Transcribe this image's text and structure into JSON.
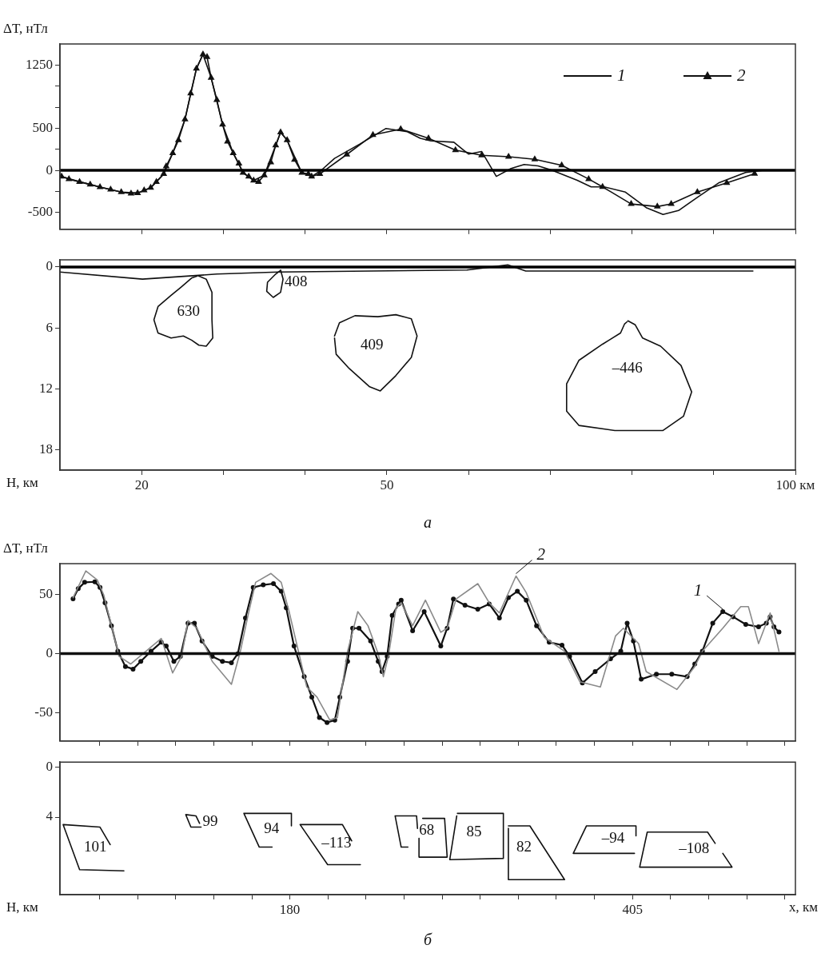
{
  "chart_data": [
    {
      "type": "line",
      "ylabel": "ΔT, нТл",
      "xlim": [
        10,
        100
      ],
      "xticks": [
        {
          "value": 20,
          "label": null
        },
        {
          "value": 30,
          "label": null
        },
        {
          "value": 40,
          "label": null
        },
        {
          "value": 50,
          "label": null
        },
        {
          "value": 60,
          "label": null
        },
        {
          "value": 70,
          "label": null
        },
        {
          "value": 80,
          "label": null
        },
        {
          "value": 90,
          "label": null
        },
        {
          "value": 100,
          "label": null
        }
      ],
      "ylim": [
        -700,
        1500
      ],
      "yticks": [
        1250,
        {
          "value": 1000,
          "label": null
        },
        {
          "value": 750,
          "label": null
        },
        500,
        {
          "value": 250,
          "label": null
        },
        0,
        {
          "value": -250,
          "label": null
        },
        -500
      ],
      "tick_labels": "y",
      "legend": "top right",
      "grid": false,
      "ref_lines": [
        {
          "axis": "y",
          "value": 0,
          "color": "#000000"
        }
      ],
      "series": [
        {
          "name": "1",
          "color": "#111111",
          "marker": "none",
          "x": [
            10.2,
            12.4,
            14.9,
            17.5,
            19.5,
            21.1,
            22.7,
            23.8,
            25.3,
            26.7,
            27.5,
            28.5,
            29.9,
            31.2,
            32.4,
            33.7,
            35.0,
            36.4,
            37.0,
            37.8,
            39.6,
            40.8,
            42.0,
            43.6,
            46.7,
            49.9,
            52.5,
            54.1,
            55.4,
            58.2,
            59.4,
            60.0,
            61.6,
            63.4,
            65.2,
            66.8,
            68.5,
            70.1,
            73.3,
            75.0,
            76.6,
            79.2,
            81.8,
            83.8,
            85.7,
            88.0,
            90.6,
            93.9,
            96.1
          ],
          "values": [
            -74,
            -136,
            -198,
            -259,
            -269,
            -207,
            -43,
            204,
            605,
            1207,
            1377,
            1099,
            543,
            204,
            -28,
            -120,
            -59,
            296,
            451,
            358,
            -28,
            -74,
            3,
            142,
            312,
            497,
            458,
            380,
            349,
            334,
            240,
            193,
            224,
            -72,
            22,
            69,
            53,
            6,
            -118,
            -196,
            -196,
            -259,
            -446,
            -524,
            -477,
            -321,
            -150,
            -25,
            0
          ]
        },
        {
          "name": "2",
          "color": "#111111",
          "marker": "triangle",
          "x": [
            10.2,
            11.1,
            12.4,
            13.7,
            14.9,
            16.2,
            17.5,
            18.7,
            19.5,
            20.3,
            21.1,
            21.8,
            22.7,
            23.0,
            23.8,
            24.5,
            25.3,
            26.0,
            26.7,
            27.5,
            28.0,
            28.5,
            29.2,
            29.9,
            30.5,
            31.2,
            31.9,
            32.4,
            33.1,
            33.7,
            34.3,
            35.0,
            35.8,
            36.4,
            37.0,
            37.8,
            38.7,
            39.6,
            40.4,
            40.8,
            41.8,
            45.1,
            48.3,
            51.7,
            55.1,
            58.4,
            61.6,
            64.9,
            68.1,
            71.4,
            74.7,
            76.4,
            79.9,
            83.1,
            84.8,
            88.0,
            91.6,
            95.0
          ],
          "values": [
            -74,
            -105,
            -136,
            -167,
            -198,
            -228,
            -259,
            -275,
            -269,
            -238,
            -207,
            -136,
            -43,
            49,
            204,
            358,
            605,
            914,
            1207,
            1377,
            1346,
            1099,
            836,
            543,
            343,
            204,
            80,
            -28,
            -74,
            -120,
            -136,
            -59,
            96,
            296,
            451,
            358,
            127,
            -28,
            -43,
            -74,
            -43,
            188,
            420,
            490,
            380,
            240,
            178,
            162,
            131,
            59,
            -103,
            -196,
            -399,
            -430,
            -399,
            -259,
            -150,
            -41
          ]
        }
      ]
    },
    {
      "type": "line",
      "ylabel": "Н, км",
      "xlim": [
        10,
        100
      ],
      "xticks": [
        20,
        {
          "value": 30,
          "label": null
        },
        {
          "value": 40,
          "label": null
        },
        50,
        {
          "value": 60,
          "label": null
        },
        {
          "value": 70,
          "label": null
        },
        {
          "value": 80,
          "label": null
        },
        {
          "value": 90,
          "label": null
        },
        {
          "value": 100,
          "label": "100 км"
        }
      ],
      "ylim": [
        20,
        -0.7
      ],
      "yticks": [
        0,
        6,
        12,
        18
      ],
      "grid": false,
      "ref_lines": [
        {
          "axis": "y",
          "value": 0,
          "color": "#000000"
        }
      ],
      "annotations": [
        "а"
      ],
      "series": [
        {
          "color": "#111111",
          "x": [
            10,
            20.1,
            29.2,
            36.7,
            59.8,
            64.8,
            67.0,
            94.8
          ],
          "values": [
            0.5,
            1.2,
            0.7,
            0.5,
            0.3,
            -0.2,
            0.4,
            0.4
          ]
        },
        {
          "name": "630",
          "color": "#111111",
          "x": [
            27.0,
            27.9,
            28.6,
            28.6,
            28.7,
            27.9,
            27.0,
            26.1,
            25.1,
            23.6,
            22.0,
            21.5,
            22.0,
            23.6,
            24.8,
            26.1,
            26.8
          ],
          "values": [
            0.9,
            1.2,
            2.5,
            5.2,
            7.0,
            7.8,
            7.7,
            7.2,
            6.8,
            7.0,
            6.5,
            5.2,
            3.9,
            2.8,
            2.0,
            1.1,
            0.9
          ]
        },
        {
          "name": "408",
          "color": "#111111",
          "x": [
            37.0,
            37.3,
            37.0,
            36.1,
            35.3,
            35.4,
            36.4,
            36.9
          ],
          "values": [
            0.3,
            1.2,
            2.5,
            3.0,
            2.4,
            1.5,
            0.7,
            0.4
          ]
        },
        {
          "name": "409",
          "color": "#111111",
          "x": [
            43.6,
            44.2,
            46.1,
            48.9,
            51.1,
            53.0,
            53.7,
            53.0,
            51.1,
            49.2,
            47.9,
            45.4,
            43.8,
            43.6
          ],
          "values": [
            6.8,
            5.5,
            4.8,
            4.9,
            4.7,
            5.1,
            6.8,
            8.9,
            10.7,
            12.2,
            11.8,
            10.0,
            8.6,
            7.0
          ]
        },
        {
          "name": "–446",
          "color": "#111111",
          "x": [
            79.5,
            80.4,
            81.3,
            83.5,
            86.0,
            87.3,
            86.3,
            83.8,
            77.9,
            73.5,
            72.0,
            72.0,
            73.5,
            76.4,
            78.6,
            79.1,
            79.4
          ],
          "values": [
            5.3,
            5.7,
            7.0,
            7.8,
            9.7,
            12.3,
            14.7,
            16.1,
            16.1,
            15.6,
            14.2,
            11.5,
            9.2,
            7.6,
            6.5,
            5.6,
            5.4
          ]
        }
      ]
    },
    {
      "type": "line",
      "ylabel": "ΔT, нТл",
      "xlim": [
        29,
        512
      ],
      "xticks": [
        {
          "value": 55,
          "label": null
        },
        {
          "value": 80,
          "label": null
        },
        {
          "value": 105,
          "label": null
        },
        {
          "value": 130,
          "label": null
        },
        {
          "value": 155,
          "label": null
        },
        {
          "value": 180,
          "label": null
        },
        {
          "value": 205,
          "label": null
        },
        {
          "value": 230,
          "label": null
        },
        {
          "value": 255,
          "label": null
        },
        {
          "value": 280,
          "label": null
        },
        {
          "value": 305,
          "label": null
        },
        {
          "value": 330,
          "label": null
        },
        {
          "value": 355,
          "label": null
        },
        {
          "value": 380,
          "label": null
        },
        {
          "value": 405,
          "label": null
        },
        {
          "value": 430,
          "label": null
        },
        {
          "value": 455,
          "label": null
        },
        {
          "value": 480,
          "label": null
        },
        {
          "value": 505,
          "label": null
        }
      ],
      "ylim": [
        -74,
        76
      ],
      "yticks": [
        50,
        0,
        -50
      ],
      "tick_labels": "y",
      "grid": false,
      "ref_lines": [
        {
          "axis": "y",
          "value": 0,
          "color": "#111111"
        }
      ],
      "annotations": [
        {
          "text": "2",
          "x": 328.5,
          "y": 65.5
        },
        {
          "text": "1",
          "x": 464.3,
          "y": 35.4
        }
      ],
      "series": [
        {
          "color": "#8a8a8a",
          "marker": "none",
          "x": [
            37.6,
            46.0,
            53.5,
            57.8,
            67.8,
            75.4,
            95.5,
            103.0,
            108.9,
            113.1,
            118.9,
            129.0,
            141.6,
            147.5,
            152.5,
            157.5,
            167.6,
            174.3,
            179.3,
            191.1,
            197.8,
            206.2,
            211.2,
            217.9,
            224.6,
            231.3,
            238.0,
            241.4,
            244.7,
            249.7,
            253.1,
            260.6,
            269.0,
            279.1,
            283.3,
            289.2,
            303.4,
            310.9,
            317.6,
            328.5,
            335.2,
            347.0,
            360.4,
            370.4,
            383.9,
            393.9,
            399.0,
            409.0,
            414.0,
            434.2,
            445.9,
            450.9,
            464.3,
            476.1,
            481.1,
            487.8,
            495.4,
            501.2
          ],
          "values": [
            47.2,
            69.9,
            62.3,
            49.4,
            -2.4,
            -8.9,
            12.7,
            -16.4,
            -2.4,
            27.8,
            21.4,
            -6.7,
            -26.1,
            1.9,
            32.2,
            60.2,
            67.7,
            60.2,
            36.4,
            -28.3,
            -36.9,
            -56.3,
            -54.2,
            1.9,
            35.4,
            23.5,
            -0.2,
            -19.6,
            -2.4,
            38.6,
            42.9,
            23.5,
            45.1,
            17.9,
            21.4,
            46.1,
            59.1,
            42.9,
            34.3,
            65.5,
            51.6,
            13.8,
            1.9,
            -23.9,
            -28.3,
            14.9,
            21.4,
            8.4,
            -15.3,
            -30.4,
            -11.0,
            1.9,
            21.4,
            39.7,
            39.7,
            8.4,
            34.3,
            1.9
          ]
        },
        {
          "color": "#111111",
          "marker": "circle",
          "x": [
            37.6,
            41.0,
            45.2,
            51.9,
            55.3,
            58.6,
            62.8,
            67.0,
            72.0,
            77.0,
            82.1,
            88.8,
            95.5,
            98.8,
            103.8,
            108.1,
            113.1,
            117.3,
            122.3,
            129.0,
            135.7,
            141.6,
            145.8,
            150.8,
            155.9,
            162.5,
            169.2,
            174.3,
            177.6,
            182.7,
            189.4,
            194.4,
            199.4,
            204.4,
            209.5,
            212.8,
            217.9,
            221.2,
            225.4,
            233.0,
            238.0,
            240.5,
            243.9,
            247.2,
            251.4,
            253.1,
            260.6,
            268.2,
            279.1,
            283.3,
            287.4,
            295.0,
            303.4,
            310.9,
            317.6,
            323.5,
            329.4,
            335.2,
            342.0,
            350.3,
            358.7,
            363.7,
            372.1,
            380.5,
            390.6,
            397.3,
            401.5,
            405.6,
            410.7,
            420.7,
            430.8,
            440.9,
            445.9,
            450.9,
            457.7,
            464.3,
            471.0,
            479.4,
            487.8,
            492.9,
            495.4,
            497.9,
            501.2
          ],
          "values": [
            46.2,
            54.8,
            60.2,
            60.6,
            55.9,
            42.9,
            23.5,
            1.9,
            -11.0,
            -13.2,
            -6.7,
            1.9,
            9.5,
            6.3,
            -6.7,
            -2.4,
            25.7,
            25.7,
            10.6,
            -2.4,
            -6.7,
            -7.8,
            -0.2,
            30.0,
            55.9,
            58.0,
            59.1,
            52.6,
            38.6,
            6.3,
            -19.6,
            -36.9,
            -54.2,
            -58.4,
            -56.3,
            -36.9,
            -6.7,
            21.4,
            21.4,
            10.6,
            -6.7,
            -15.3,
            -2.4,
            32.2,
            41.9,
            45.1,
            19.2,
            35.4,
            6.3,
            21.4,
            46.1,
            40.8,
            37.5,
            41.9,
            30.0,
            47.2,
            52.6,
            45.1,
            23.5,
            9.5,
            7.1,
            -2.4,
            -25.0,
            -15.3,
            -4.5,
            1.9,
            25.7,
            10.6,
            -21.8,
            -17.5,
            -17.5,
            -19.6,
            -8.9,
            1.9,
            25.7,
            35.4,
            31.1,
            24.6,
            22.5,
            25.7,
            31.1,
            22.5,
            18.1
          ]
        }
      ]
    },
    {
      "type": "line",
      "ylabel": "H, км",
      "xlabel": "x, км",
      "xlim": [
        29,
        512
      ],
      "xticks": [
        {
          "value": 55,
          "label": null
        },
        {
          "value": 80,
          "label": null
        },
        {
          "value": 105,
          "label": null
        },
        {
          "value": 130,
          "label": null
        },
        {
          "value": 155,
          "label": null
        },
        180,
        {
          "value": 205,
          "label": null
        },
        {
          "value": 230,
          "label": null
        },
        {
          "value": 255,
          "label": null
        },
        {
          "value": 280,
          "label": null
        },
        {
          "value": 305,
          "label": null
        },
        {
          "value": 330,
          "label": null
        },
        {
          "value": 355,
          "label": null
        },
        {
          "value": 380,
          "label": null
        },
        405,
        {
          "value": 430,
          "label": null
        },
        {
          "value": 455,
          "label": null
        },
        {
          "value": 480,
          "label": null
        },
        {
          "value": 505,
          "label": null
        }
      ],
      "ylim": [
        10.2,
        -0.4
      ],
      "yticks": [
        0,
        4
      ],
      "grid": false,
      "annotations": [
        "б"
      ],
      "series": [
        {
          "name": "101",
          "color": "#111111",
          "x": [
            62.0,
            55.3,
            31.1,
            41.9,
            71.0
          ],
          "values": [
            6.2,
            4.8,
            4.6,
            8.2,
            8.3
          ]
        },
        {
          "name": "99",
          "color": "#111111",
          "x": [
            121.7,
            115.0,
            111.6,
            118.3,
            120.7
          ],
          "values": [
            4.8,
            4.8,
            3.8,
            3.9,
            4.5
          ]
        },
        {
          "name": "94",
          "color": "#111111",
          "x": [
            168.3,
            159.9,
            149.8,
            181.0,
            181.0
          ],
          "values": [
            6.4,
            6.4,
            3.7,
            3.7,
            4.7
          ]
        },
        {
          "name": "–113",
          "color": "#111111",
          "x": [
            220.6,
            214.5,
            186.7,
            204.8,
            226.3
          ],
          "values": [
            5.9,
            4.6,
            4.6,
            7.8,
            7.8
          ]
        },
        {
          "name": "68",
          "color": "#111111",
          "x": [
            257.5,
            253.1,
            249.1,
            263.2,
            263.8
          ],
          "values": [
            6.4,
            6.4,
            3.9,
            3.9,
            4.9
          ]
        },
        {
          "color": "#111111",
          "x": [
            267.2,
            281.6,
            283.3,
            264.8,
            264.8
          ],
          "values": [
            4.1,
            4.1,
            7.2,
            7.2,
            5.7
          ]
        },
        {
          "name": "85",
          "color": "#111111",
          "x": [
            290.0,
            320.2,
            320.2,
            285.0,
            289.6
          ],
          "values": [
            3.7,
            3.7,
            7.3,
            7.4,
            3.9
          ]
        },
        {
          "name": "82",
          "color": "#111111",
          "x": [
            323.5,
            337.6,
            360.4,
            323.5,
            323.5
          ],
          "values": [
            4.7,
            4.7,
            9.0,
            9.0,
            4.9
          ]
        },
        {
          "name": "–94",
          "color": "#111111",
          "x": [
            407.3,
            407.3,
            374.8,
            366.1,
            406.3
          ],
          "values": [
            5.5,
            4.7,
            4.7,
            6.9,
            6.9
          ]
        },
        {
          "name": "–108",
          "color": "#111111",
          "x": [
            459.3,
            454.3,
            414.7,
            409.7,
            470.4,
            464.3
          ],
          "values": [
            6.1,
            5.2,
            5.2,
            8.0,
            8.0,
            6.9
          ]
        }
      ]
    }
  ]
}
